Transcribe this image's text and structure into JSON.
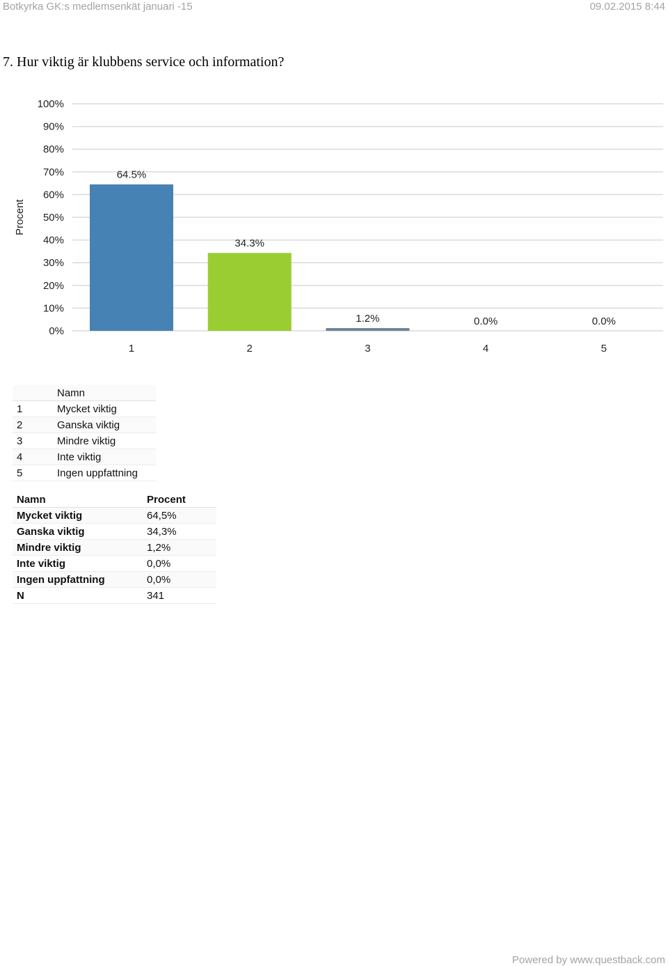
{
  "header": {
    "survey_title": "Botkyrka GK:s medlemsenkät januari -15",
    "timestamp": "09.02.2015 8:44"
  },
  "question": "7. Hur viktig är klubbens service och information?",
  "chart_data": {
    "type": "bar",
    "categories": [
      "1",
      "2",
      "3",
      "4",
      "5"
    ],
    "values": [
      64.5,
      34.3,
      1.2,
      0.0,
      0.0
    ],
    "value_labels": [
      "64.5%",
      "34.3%",
      "1.2%",
      "0.0%",
      "0.0%"
    ],
    "colors": [
      "#4782b4",
      "#9acd32",
      "#6e8396",
      "#4782b4",
      "#4782b4"
    ],
    "ylabel": "Procent",
    "ylim": [
      0,
      100
    ],
    "yticks": [
      "0%",
      "10%",
      "20%",
      "30%",
      "40%",
      "50%",
      "60%",
      "70%",
      "80%",
      "90%",
      "100%"
    ],
    "grid": true
  },
  "legend": {
    "header": "Namn",
    "items": [
      {
        "num": "1",
        "name": "Mycket viktig"
      },
      {
        "num": "2",
        "name": "Ganska viktig"
      },
      {
        "num": "3",
        "name": "Mindre viktig"
      },
      {
        "num": "4",
        "name": "Inte viktig"
      },
      {
        "num": "5",
        "name": "Ingen uppfattning"
      }
    ]
  },
  "results": {
    "col_name": "Namn",
    "col_percent": "Procent",
    "rows": [
      {
        "name": "Mycket viktig",
        "value": "64,5%"
      },
      {
        "name": "Ganska viktig",
        "value": "34,3%"
      },
      {
        "name": "Mindre viktig",
        "value": "1,2%"
      },
      {
        "name": "Inte viktig",
        "value": "0,0%"
      },
      {
        "name": "Ingen uppfattning",
        "value": "0,0%"
      }
    ],
    "n_label": "N",
    "n_value": "341"
  },
  "footer": "Powered by www.questback.com"
}
